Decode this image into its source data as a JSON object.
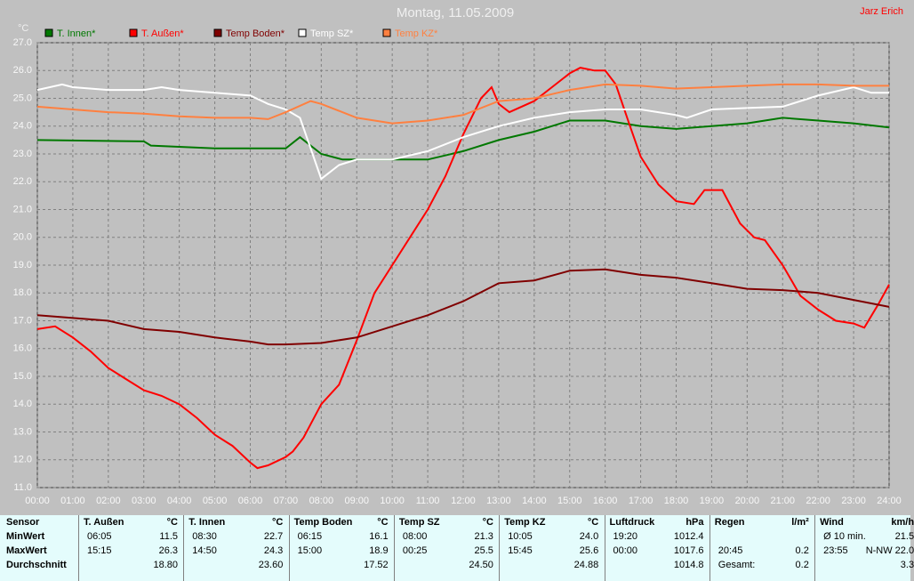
{
  "chart_data": {
    "type": "line",
    "title": "Montag, 11.05.2009",
    "author": "Jarz Erich",
    "y_label": "°C",
    "xlim": [
      0,
      24
    ],
    "xticks": [
      {
        "value": 0,
        "label": "00:00"
      },
      {
        "value": 1,
        "label": "01:00"
      },
      {
        "value": 2,
        "label": "02:00"
      },
      {
        "value": 3,
        "label": "03:00"
      },
      {
        "value": 4,
        "label": "04:00"
      },
      {
        "value": 5,
        "label": "05:00"
      },
      {
        "value": 6,
        "label": "06:00"
      },
      {
        "value": 7,
        "label": "07:00"
      },
      {
        "value": 8,
        "label": "08:00"
      },
      {
        "value": 9,
        "label": "09:00"
      },
      {
        "value": 10,
        "label": "10:00"
      },
      {
        "value": 11,
        "label": "11:00"
      },
      {
        "value": 12,
        "label": "12:00"
      },
      {
        "value": 13,
        "label": "13:00"
      },
      {
        "value": 14,
        "label": "14:00"
      },
      {
        "value": 15,
        "label": "15:00"
      },
      {
        "value": 16,
        "label": "16:00"
      },
      {
        "value": 17,
        "label": "17:00"
      },
      {
        "value": 18,
        "label": "18:00"
      },
      {
        "value": 19,
        "label": "19:00"
      },
      {
        "value": 20,
        "label": "20:00"
      },
      {
        "value": 21,
        "label": "21:00"
      },
      {
        "value": 22,
        "label": "22:00"
      },
      {
        "value": 23,
        "label": "23:00"
      },
      {
        "value": 24,
        "label": "24:00"
      }
    ],
    "ylim": [
      11,
      27
    ],
    "yticks": [
      {
        "value": 11,
        "label": "11.0"
      },
      {
        "value": 12,
        "label": "12.0"
      },
      {
        "value": 13,
        "label": "13.0"
      },
      {
        "value": 14,
        "label": "14.0"
      },
      {
        "value": 15,
        "label": "15.0"
      },
      {
        "value": 16,
        "label": "16.0"
      },
      {
        "value": 17,
        "label": "17.0"
      },
      {
        "value": 18,
        "label": "18.0"
      },
      {
        "value": 19,
        "label": "19.0"
      },
      {
        "value": 20,
        "label": "20.0"
      },
      {
        "value": 21,
        "label": "21.0"
      },
      {
        "value": 22,
        "label": "22.0"
      },
      {
        "value": 23,
        "label": "23.0"
      },
      {
        "value": 24,
        "label": "24.0"
      },
      {
        "value": 25,
        "label": "25.0"
      },
      {
        "value": 26,
        "label": "26.0"
      },
      {
        "value": 27,
        "label": "27.0"
      }
    ],
    "grid": true,
    "series": [
      {
        "name": "T. Innen*",
        "color": "#007800",
        "x": [
          0,
          3,
          3.2,
          5,
          7,
          7.4,
          8,
          8.6,
          10,
          11,
          12,
          13,
          14,
          15,
          16,
          17,
          18,
          19,
          20,
          21,
          22,
          23,
          24
        ],
        "values": [
          23.5,
          23.45,
          23.3,
          23.2,
          23.2,
          23.6,
          23.0,
          22.8,
          22.8,
          22.8,
          23.1,
          23.5,
          23.8,
          24.2,
          24.2,
          24.0,
          23.9,
          24.0,
          24.1,
          24.3,
          24.2,
          24.1,
          23.95
        ]
      },
      {
        "name": "T. Außen*",
        "color": "#ff0000",
        "x": [
          0,
          0.5,
          1,
          1.5,
          2,
          2.5,
          3,
          3.5,
          4,
          4.5,
          5,
          5.5,
          6,
          6.2,
          6.5,
          7,
          7.2,
          7.5,
          8,
          8.5,
          9,
          9.5,
          10,
          10.5,
          11,
          11.5,
          12,
          12.5,
          12.8,
          13,
          13.3,
          14,
          14.5,
          15,
          15.3,
          15.7,
          16,
          16.3,
          16.7,
          17,
          17.5,
          18,
          18.5,
          18.8,
          19.3,
          19.8,
          20.2,
          20.5,
          21,
          21.5,
          22,
          22.5,
          23,
          23.3,
          23.7,
          24
        ],
        "values": [
          16.7,
          16.8,
          16.4,
          15.9,
          15.3,
          14.9,
          14.5,
          14.3,
          14.0,
          13.5,
          12.9,
          12.5,
          11.9,
          11.7,
          11.8,
          12.1,
          12.3,
          12.8,
          14.0,
          14.7,
          16.3,
          18.0,
          19.0,
          20.0,
          21.0,
          22.2,
          23.7,
          25.0,
          25.4,
          24.8,
          24.5,
          24.9,
          25.4,
          25.9,
          26.1,
          26.0,
          26.0,
          25.5,
          24.0,
          22.9,
          21.9,
          21.3,
          21.2,
          21.7,
          21.7,
          20.5,
          20.0,
          19.9,
          19.0,
          17.9,
          17.4,
          17.0,
          16.9,
          16.75,
          17.6,
          18.3
        ]
      },
      {
        "name": "Temp Boden*",
        "color": "#800000",
        "x": [
          0,
          2,
          3,
          4,
          5,
          6,
          6.5,
          7,
          8,
          9,
          10,
          11,
          12,
          13,
          14,
          15,
          16,
          17,
          18,
          19,
          20,
          21,
          22,
          23,
          24
        ],
        "values": [
          17.2,
          17.0,
          16.7,
          16.6,
          16.4,
          16.25,
          16.15,
          16.15,
          16.2,
          16.4,
          16.8,
          17.2,
          17.7,
          18.35,
          18.45,
          18.8,
          18.85,
          18.65,
          18.55,
          18.35,
          18.15,
          18.1,
          18.0,
          17.75,
          17.5
        ]
      },
      {
        "name": "Temp SZ*",
        "color": "#ffffff",
        "x": [
          0,
          0.7,
          1,
          2,
          3,
          3.5,
          4,
          5,
          6,
          6.5,
          7,
          7.4,
          7.7,
          8,
          8.5,
          9,
          10,
          11,
          12,
          13,
          14,
          15,
          16,
          17,
          18,
          18.3,
          19,
          20,
          21,
          22,
          23,
          23.5,
          24
        ],
        "values": [
          25.3,
          25.5,
          25.4,
          25.3,
          25.3,
          25.4,
          25.3,
          25.2,
          25.1,
          24.8,
          24.6,
          24.3,
          23.2,
          22.1,
          22.6,
          22.8,
          22.8,
          23.1,
          23.6,
          24.0,
          24.3,
          24.5,
          24.6,
          24.6,
          24.4,
          24.3,
          24.6,
          24.65,
          24.7,
          25.1,
          25.4,
          25.2,
          25.2
        ]
      },
      {
        "name": "Temp KZ*",
        "color": "#ff8040",
        "x": [
          0,
          1,
          2,
          3,
          4,
          5,
          6,
          6.5,
          7,
          7.7,
          8,
          9,
          10,
          11,
          12,
          13,
          14,
          15,
          16,
          17,
          18,
          19,
          20,
          21,
          22,
          23,
          24
        ],
        "values": [
          24.7,
          24.6,
          24.5,
          24.45,
          24.35,
          24.3,
          24.3,
          24.25,
          24.5,
          24.9,
          24.8,
          24.3,
          24.1,
          24.2,
          24.4,
          24.9,
          25.0,
          25.3,
          25.5,
          25.45,
          25.35,
          25.4,
          25.45,
          25.5,
          25.5,
          25.45,
          25.45
        ]
      }
    ]
  },
  "table": {
    "row_labels": [
      "Sensor",
      "MinWert",
      "MaxWert",
      "Durchschnitt"
    ],
    "groups": [
      {
        "name": "T. Außen",
        "unit": "°C",
        "min": {
          "time": "06:05",
          "value": "11.5"
        },
        "max": {
          "time": "15:15",
          "value": "26.3"
        },
        "avg": {
          "value": "18.80"
        }
      },
      {
        "name": "T. Innen",
        "unit": "°C",
        "min": {
          "time": "08:30",
          "value": "22.7"
        },
        "max": {
          "time": "14:50",
          "value": "24.3"
        },
        "avg": {
          "value": "23.60"
        }
      },
      {
        "name": "Temp Boden",
        "unit": "°C",
        "min": {
          "time": "06:15",
          "value": "16.1"
        },
        "max": {
          "time": "15:00",
          "value": "18.9"
        },
        "avg": {
          "value": "17.52"
        }
      },
      {
        "name": "Temp SZ",
        "unit": "°C",
        "min": {
          "time": "08:00",
          "value": "21.3"
        },
        "max": {
          "time": "00:25",
          "value": "25.5"
        },
        "avg": {
          "value": "24.50"
        }
      },
      {
        "name": "Temp KZ",
        "unit": "°C",
        "min": {
          "time": "10:05",
          "value": "24.0"
        },
        "max": {
          "time": "15:45",
          "value": "25.6"
        },
        "avg": {
          "value": "24.88"
        }
      },
      {
        "name": "Luftdruck",
        "unit": "hPa",
        "min": {
          "time": "19:20",
          "value": "1012.4"
        },
        "max": {
          "time": "00:00",
          "value": "1017.6"
        },
        "avg": {
          "value": "1014.8"
        }
      },
      {
        "name": "Regen",
        "unit": "l/m²",
        "max": {
          "time": "20:45",
          "value": "0.2"
        },
        "avg": {
          "time": "Gesamt:",
          "value": "0.2"
        }
      },
      {
        "name": "Wind",
        "unit": "km/h",
        "min": {
          "time": "Ø 10 min.",
          "value": "21.5"
        },
        "max": {
          "time": "23:55",
          "value": "N-NW 22.0"
        },
        "avg": {
          "value": "3.3"
        }
      }
    ]
  }
}
